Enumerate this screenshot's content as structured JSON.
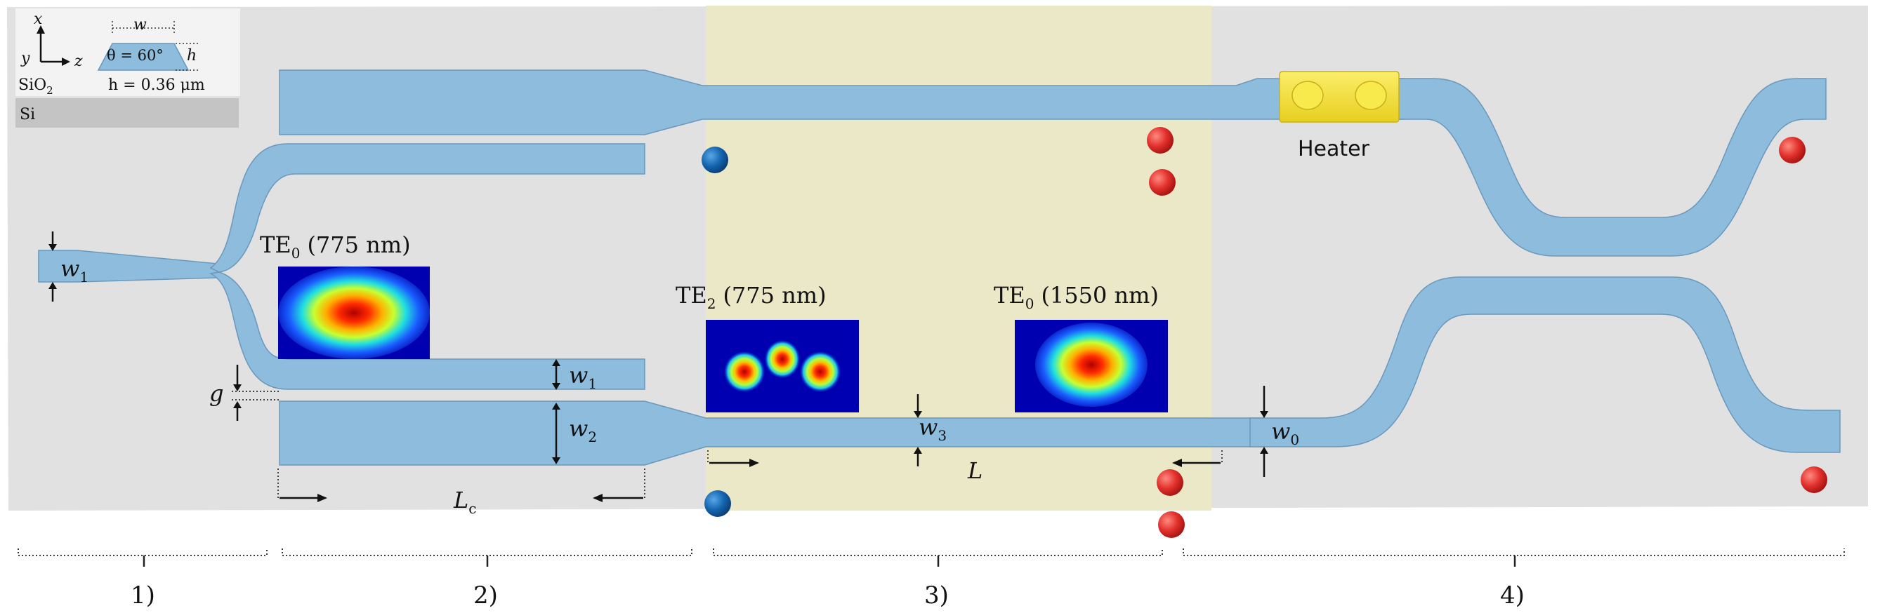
{
  "inset": {
    "axis_x": "x",
    "axis_y": "y",
    "axis_z": "z",
    "width_label": "w",
    "angle_label": "θ = 60°",
    "height_label": "h",
    "cladding": "SiO",
    "cladding_sub": "2",
    "height_value": "h = 0.36 μm",
    "substrate": "Si"
  },
  "labels": {
    "w1_left": "w",
    "w1_left_sub": "1",
    "w1_mid": "w",
    "w1_mid_sub": "1",
    "w2": "w",
    "w2_sub": "2",
    "w3": "w",
    "w3_sub": "3",
    "w0": "w",
    "w0_sub": "0",
    "gap": "g",
    "lc": "L",
    "lc_sub": "c",
    "l": "L",
    "heater": "Heater"
  },
  "modes": [
    {
      "mode": "TE",
      "sub": "0",
      "wavelength": "(775 nm)"
    },
    {
      "mode": "TE",
      "sub": "2",
      "wavelength": "(775 nm)"
    },
    {
      "mode": "TE",
      "sub": "0",
      "wavelength": "(1550 nm)"
    }
  ],
  "sections": [
    "1)",
    "2)",
    "3)",
    "4)"
  ],
  "colors": {
    "background_panel": "#e1e1e1",
    "pp_region": "#ebe7c8",
    "waveguide": "#8ebcdc",
    "waveguide_edge": "#6a98bc",
    "heater": "#f2de3a",
    "pump_dot": "#1a6db5",
    "signal_dot": "#e03a36"
  }
}
